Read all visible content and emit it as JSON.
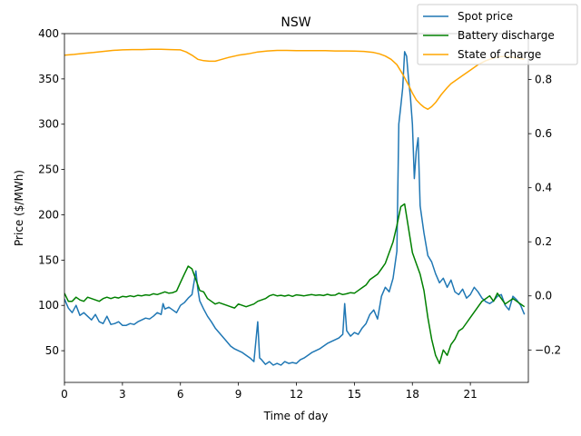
{
  "chart_data": {
    "type": "line",
    "title": "NSW",
    "xlabel": "Time of day",
    "ylabel": "Price ($/MWh)",
    "xlim": [
      0,
      24
    ],
    "ylim": [
      15,
      400
    ],
    "y2lim": [
      -0.32,
      0.97
    ],
    "xticks": [
      0,
      3,
      6,
      9,
      12,
      15,
      18,
      21
    ],
    "yticks": [
      50,
      100,
      150,
      200,
      250,
      300,
      350,
      400
    ],
    "y2ticks": [
      -0.2,
      0.0,
      0.2,
      0.4,
      0.6,
      0.8
    ],
    "y2ticklabels": [
      "−0.2",
      "0.0",
      "0.2",
      "0.4",
      "0.6",
      "0.8"
    ],
    "legend_position": "top-right",
    "grid": false,
    "series": [
      {
        "name": "Spot price",
        "axis": "left",
        "color": "#1f77b4",
        "x": [
          0,
          0.2,
          0.4,
          0.6,
          0.8,
          1,
          1.2,
          1.4,
          1.6,
          1.8,
          2,
          2.2,
          2.4,
          2.6,
          2.8,
          3,
          3.2,
          3.4,
          3.6,
          3.8,
          4,
          4.2,
          4.4,
          4.6,
          4.8,
          5,
          5.1,
          5.2,
          5.4,
          5.6,
          5.8,
          6,
          6.2,
          6.4,
          6.6,
          6.8,
          6.9,
          7,
          7.2,
          7.4,
          7.6,
          7.8,
          8,
          8.2,
          8.4,
          8.6,
          8.8,
          9,
          9.2,
          9.4,
          9.6,
          9.8,
          10,
          10.1,
          10.2,
          10.4,
          10.6,
          10.8,
          11,
          11.2,
          11.4,
          11.6,
          11.8,
          12,
          12.2,
          12.4,
          12.6,
          12.8,
          13,
          13.2,
          13.4,
          13.6,
          13.8,
          14,
          14.2,
          14.4,
          14.5,
          14.6,
          14.8,
          15,
          15.2,
          15.4,
          15.6,
          15.8,
          16,
          16.2,
          16.4,
          16.6,
          16.8,
          17,
          17.2,
          17.3,
          17.4,
          17.5,
          17.6,
          17.7,
          17.8,
          17.9,
          18,
          18.1,
          18.2,
          18.3,
          18.4,
          18.5,
          18.6,
          18.8,
          19,
          19.2,
          19.4,
          19.6,
          19.8,
          20,
          20.2,
          20.4,
          20.6,
          20.8,
          21,
          21.2,
          21.4,
          21.6,
          21.8,
          22,
          22.2,
          22.4,
          22.6,
          22.8,
          23,
          23.2,
          23.4,
          23.6,
          23.8
        ],
        "values": [
          107,
          97,
          92,
          100,
          89,
          92,
          88,
          84,
          90,
          82,
          80,
          88,
          79,
          80,
          82,
          78,
          78,
          80,
          79,
          82,
          84,
          86,
          85,
          88,
          92,
          90,
          102,
          96,
          98,
          95,
          92,
          100,
          103,
          108,
          112,
          138,
          118,
          105,
          96,
          88,
          82,
          75,
          70,
          65,
          60,
          55,
          52,
          50,
          48,
          45,
          42,
          38,
          82,
          42,
          40,
          35,
          38,
          34,
          36,
          34,
          38,
          36,
          37,
          36,
          40,
          42,
          45,
          48,
          50,
          52,
          55,
          58,
          60,
          62,
          64,
          68,
          102,
          72,
          66,
          70,
          68,
          75,
          80,
          90,
          95,
          85,
          110,
          120,
          115,
          130,
          160,
          300,
          320,
          340,
          380,
          375,
          350,
          330,
          300,
          240,
          270,
          285,
          210,
          195,
          180,
          155,
          148,
          135,
          125,
          130,
          120,
          128,
          115,
          112,
          118,
          108,
          112,
          120,
          115,
          108,
          104,
          102,
          105,
          110,
          112,
          100,
          95,
          110,
          106,
          100,
          90
        ]
      },
      {
        "name": "Battery discharge",
        "axis": "right",
        "color": "#008000",
        "x": [
          0,
          0.2,
          0.4,
          0.6,
          0.8,
          1,
          1.2,
          1.4,
          1.6,
          1.8,
          2,
          2.2,
          2.4,
          2.6,
          2.8,
          3,
          3.2,
          3.4,
          3.6,
          3.8,
          4,
          4.2,
          4.4,
          4.6,
          4.8,
          5,
          5.2,
          5.4,
          5.6,
          5.8,
          6,
          6.2,
          6.4,
          6.6,
          6.8,
          7,
          7.2,
          7.4,
          7.6,
          7.8,
          8,
          8.2,
          8.4,
          8.6,
          8.8,
          9,
          9.2,
          9.4,
          9.6,
          9.8,
          10,
          10.2,
          10.4,
          10.6,
          10.8,
          11,
          11.2,
          11.4,
          11.6,
          11.8,
          12,
          12.2,
          12.4,
          12.6,
          12.8,
          13,
          13.2,
          13.4,
          13.6,
          13.8,
          14,
          14.2,
          14.4,
          14.6,
          14.8,
          15,
          15.2,
          15.4,
          15.6,
          15.8,
          16,
          16.2,
          16.4,
          16.6,
          16.8,
          17,
          17.2,
          17.4,
          17.6,
          17.8,
          18,
          18.2,
          18.4,
          18.6,
          18.8,
          19,
          19.2,
          19.4,
          19.6,
          19.8,
          20,
          20.2,
          20.4,
          20.6,
          20.8,
          21,
          21.2,
          21.4,
          21.6,
          21.8,
          22,
          22.2,
          22.4,
          22.6,
          22.8,
          23,
          23.2,
          23.4,
          23.6,
          23.8
        ],
        "values": [
          0.01,
          -0.02,
          -0.02,
          -0.005,
          -0.015,
          -0.02,
          -0.005,
          -0.01,
          -0.015,
          -0.02,
          -0.01,
          -0.005,
          -0.01,
          -0.005,
          -0.008,
          -0.002,
          -0.004,
          0,
          -0.003,
          0.002,
          0,
          0.004,
          0.002,
          0.008,
          0.005,
          0.01,
          0.015,
          0.01,
          0.012,
          0.018,
          0.05,
          0.08,
          0.11,
          0.1,
          0.06,
          0.02,
          0.015,
          -0.01,
          -0.02,
          -0.03,
          -0.025,
          -0.03,
          -0.035,
          -0.04,
          -0.045,
          -0.03,
          -0.035,
          -0.04,
          -0.035,
          -0.03,
          -0.02,
          -0.015,
          -0.01,
          0,
          0.005,
          0,
          0.002,
          -0.001,
          0.003,
          -0.002,
          0.004,
          0.002,
          0,
          0.003,
          0.005,
          0.002,
          0.004,
          0.001,
          0.006,
          0.002,
          0.003,
          0.01,
          0.005,
          0.008,
          0.012,
          0.01,
          0.02,
          0.03,
          0.04,
          0.06,
          0.07,
          0.08,
          0.1,
          0.12,
          0.16,
          0.2,
          0.26,
          0.33,
          0.34,
          0.25,
          0.16,
          0.12,
          0.08,
          0.02,
          -0.08,
          -0.16,
          -0.22,
          -0.25,
          -0.2,
          -0.22,
          -0.18,
          -0.16,
          -0.13,
          -0.12,
          -0.1,
          -0.08,
          -0.06,
          -0.04,
          -0.02,
          -0.01,
          0.0,
          -0.02,
          0.01,
          -0.01,
          -0.03,
          -0.02,
          -0.01,
          -0.02,
          -0.03,
          -0.04
        ]
      },
      {
        "name": "State of charge",
        "axis": "right",
        "color": "#ffa500",
        "x": [
          0,
          0.5,
          1,
          1.5,
          2,
          2.5,
          3,
          3.5,
          4,
          4.5,
          5,
          5.5,
          6,
          6.3,
          6.6,
          6.9,
          7.2,
          7.5,
          7.8,
          8,
          8.5,
          9,
          9.5,
          10,
          10.5,
          11,
          11.5,
          12,
          12.5,
          13,
          13.5,
          14,
          14.5,
          15,
          15.5,
          16,
          16.3,
          16.6,
          16.9,
          17.2,
          17.5,
          17.8,
          18,
          18.2,
          18.4,
          18.6,
          18.8,
          19,
          19.2,
          19.5,
          19.8,
          20,
          20.3,
          20.6,
          21,
          21.4,
          21.8,
          22.2,
          22.6,
          23,
          23.4,
          23.8
        ],
        "values": [
          0.89,
          0.893,
          0.897,
          0.9,
          0.904,
          0.908,
          0.91,
          0.911,
          0.911,
          0.912,
          0.912,
          0.911,
          0.91,
          0.902,
          0.89,
          0.875,
          0.87,
          0.868,
          0.868,
          0.872,
          0.882,
          0.89,
          0.895,
          0.902,
          0.906,
          0.908,
          0.908,
          0.907,
          0.907,
          0.907,
          0.907,
          0.906,
          0.906,
          0.905,
          0.904,
          0.9,
          0.895,
          0.887,
          0.875,
          0.855,
          0.82,
          0.78,
          0.75,
          0.725,
          0.71,
          0.698,
          0.69,
          0.7,
          0.715,
          0.745,
          0.77,
          0.785,
          0.8,
          0.815,
          0.835,
          0.855,
          0.87,
          0.88,
          0.885,
          0.885,
          0.88,
          0.875
        ]
      }
    ]
  }
}
